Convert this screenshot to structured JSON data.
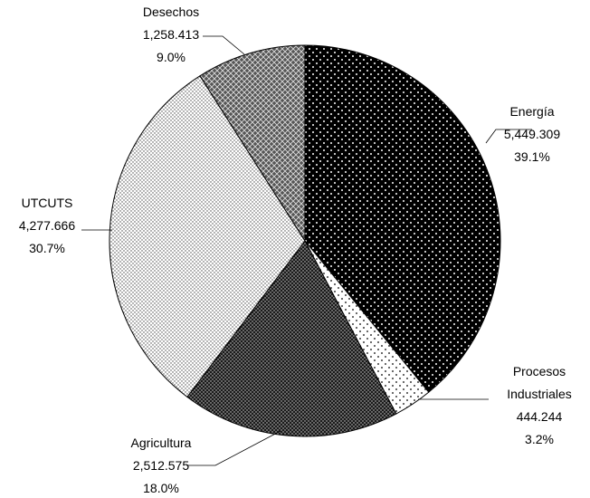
{
  "chart_data": {
    "type": "pie",
    "title": "",
    "slices": [
      {
        "name": "Energía",
        "value_label": "5,449.309",
        "percent_label": "39.1%",
        "value": 5449.309,
        "percent": 39.1,
        "pattern": "dots-on-black"
      },
      {
        "name": "Procesos Industriales",
        "name_lines": [
          "Procesos",
          "Industriales"
        ],
        "value_label": "444.244",
        "percent_label": "3.2%",
        "value": 444.244,
        "percent": 3.2,
        "pattern": "sparse-dots-on-white"
      },
      {
        "name": "Agricultura",
        "value_label": "2,512.575",
        "percent_label": "18.0%",
        "value": 2512.575,
        "percent": 18.0,
        "pattern": "dense-dots-dark"
      },
      {
        "name": "UTCUTS",
        "value_label": "4,277.666",
        "percent_label": "30.7%",
        "value": 4277.666,
        "percent": 30.7,
        "pattern": "fine-dots-light"
      },
      {
        "name": "Desechos",
        "value_label": "1,258.413",
        "percent_label": "9.0%",
        "value": 1258.413,
        "percent": 9.0,
        "pattern": "crosshatch-gray"
      }
    ],
    "start_angle": "12 o'clock",
    "direction": "clockwise"
  }
}
